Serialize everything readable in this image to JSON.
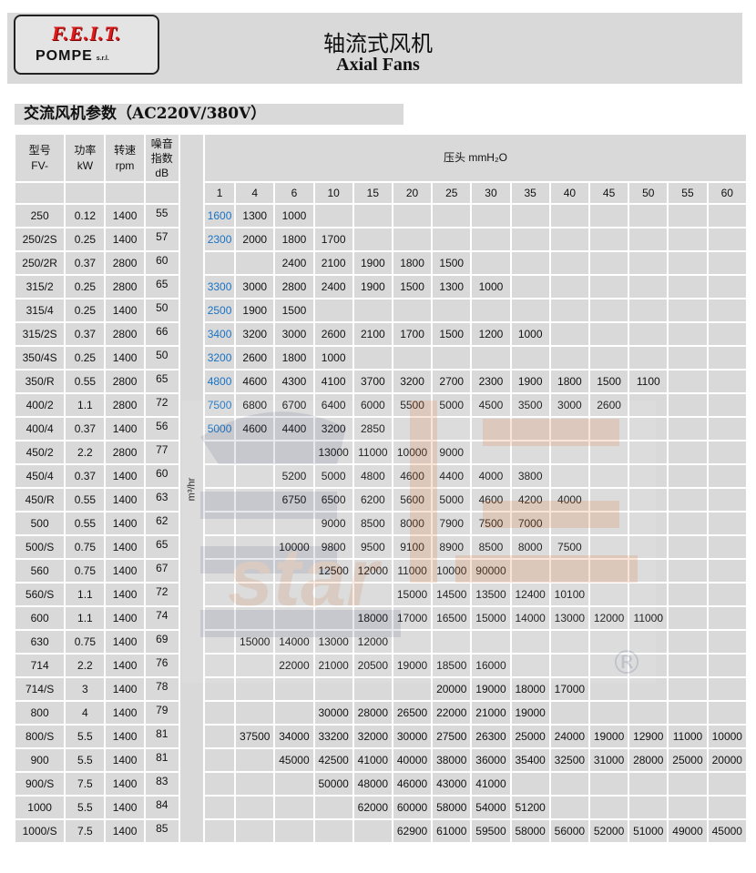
{
  "header": {
    "logo_text": "F.E.I.T.",
    "logo_sub": "POMPE",
    "logo_srl": "s.r.l.",
    "title_cn": "轴流式风机",
    "title_en": "Axial Fans"
  },
  "section_title": "交流风机参数（AC220V/380V）",
  "table": {
    "col_headers": {
      "model": "型号\nFV-",
      "power": "功率\nkW",
      "speed": "转速\nrpm",
      "noise": "噪音\n指数\ndB",
      "pressure": "压头 mmH₂O"
    },
    "unit_label": "m³/hr",
    "pressure_values": [
      "1",
      "4",
      "6",
      "10",
      "15",
      "20",
      "25",
      "30",
      "35",
      "40",
      "45",
      "50",
      "55",
      "60"
    ],
    "first_col_color": "#1a72c4",
    "rows": [
      {
        "model": "250",
        "kw": "0.12",
        "rpm": "1400",
        "db": "55",
        "flow": [
          "1600",
          "1300",
          "1000",
          "",
          "",
          "",
          "",
          "",
          "",
          "",
          "",
          "",
          "",
          ""
        ]
      },
      {
        "model": "250/2S",
        "kw": "0.25",
        "rpm": "1400",
        "db": "57",
        "flow": [
          "2300",
          "2000",
          "1800",
          "1700",
          "",
          "",
          "",
          "",
          "",
          "",
          "",
          "",
          "",
          ""
        ]
      },
      {
        "model": "250/2R",
        "kw": "0.37",
        "rpm": "2800",
        "db": "60",
        "flow": [
          "",
          "",
          "2400",
          "2100",
          "1900",
          "1800",
          "1500",
          "",
          "",
          "",
          "",
          "",
          "",
          ""
        ]
      },
      {
        "model": "315/2",
        "kw": "0.25",
        "rpm": "2800",
        "db": "65",
        "flow": [
          "3300",
          "3000",
          "2800",
          "2400",
          "1900",
          "1500",
          "1300",
          "1000",
          "",
          "",
          "",
          "",
          "",
          ""
        ]
      },
      {
        "model": "315/4",
        "kw": "0.25",
        "rpm": "1400",
        "db": "50",
        "flow": [
          "2500",
          "1900",
          "1500",
          "",
          "",
          "",
          "",
          "",
          "",
          "",
          "",
          "",
          "",
          ""
        ]
      },
      {
        "model": "315/2S",
        "kw": "0.37",
        "rpm": "2800",
        "db": "66",
        "flow": [
          "3400",
          "3200",
          "3000",
          "2600",
          "2100",
          "1700",
          "1500",
          "1200",
          "1000",
          "",
          "",
          "",
          "",
          ""
        ]
      },
      {
        "model": "350/4S",
        "kw": "0.25",
        "rpm": "1400",
        "db": "50",
        "flow": [
          "3200",
          "2600",
          "1800",
          "1000",
          "",
          "",
          "",
          "",
          "",
          "",
          "",
          "",
          "",
          ""
        ]
      },
      {
        "model": "350/R",
        "kw": "0.55",
        "rpm": "2800",
        "db": "65",
        "flow": [
          "4800",
          "4600",
          "4300",
          "4100",
          "3700",
          "3200",
          "2700",
          "2300",
          "1900",
          "1800",
          "1500",
          "1100",
          "",
          ""
        ]
      },
      {
        "model": "400/2",
        "kw": "1.1",
        "rpm": "2800",
        "db": "72",
        "flow": [
          "7500",
          "6800",
          "6700",
          "6400",
          "6000",
          "5500",
          "5000",
          "4500",
          "3500",
          "3000",
          "2600",
          "",
          "",
          ""
        ]
      },
      {
        "model": "400/4",
        "kw": "0.37",
        "rpm": "1400",
        "db": "56",
        "flow": [
          "5000",
          "4600",
          "4400",
          "3200",
          "2850",
          "",
          "",
          "",
          "",
          "",
          "",
          "",
          "",
          ""
        ]
      },
      {
        "model": "450/2",
        "kw": "2.2",
        "rpm": "2800",
        "db": "77",
        "flow": [
          "",
          "",
          "",
          "13000",
          "11000",
          "10000",
          "9000",
          "",
          "",
          "",
          "",
          "",
          "",
          ""
        ]
      },
      {
        "model": "450/4",
        "kw": "0.37",
        "rpm": "1400",
        "db": "60",
        "flow": [
          "",
          "",
          "5200",
          "5000",
          "4800",
          "4600",
          "4400",
          "4000",
          "3800",
          "",
          "",
          "",
          "",
          ""
        ]
      },
      {
        "model": "450/R",
        "kw": "0.55",
        "rpm": "1400",
        "db": "63",
        "flow": [
          "",
          "",
          "6750",
          "6500",
          "6200",
          "5600",
          "5000",
          "4600",
          "4200",
          "4000",
          "",
          "",
          "",
          ""
        ]
      },
      {
        "model": "500",
        "kw": "0.55",
        "rpm": "1400",
        "db": "62",
        "flow": [
          "",
          "",
          "",
          "9000",
          "8500",
          "8000",
          "7900",
          "7500",
          "7000",
          "",
          "",
          "",
          "",
          ""
        ]
      },
      {
        "model": "500/S",
        "kw": "0.75",
        "rpm": "1400",
        "db": "65",
        "flow": [
          "",
          "",
          "10000",
          "9800",
          "9500",
          "9100",
          "8900",
          "8500",
          "8000",
          "7500",
          "",
          "",
          "",
          ""
        ]
      },
      {
        "model": "560",
        "kw": "0.75",
        "rpm": "1400",
        "db": "67",
        "flow": [
          "",
          "",
          "",
          "12500",
          "12000",
          "11000",
          "10000",
          "90000",
          "",
          "",
          "",
          "",
          "",
          ""
        ]
      },
      {
        "model": "560/S",
        "kw": "1.1",
        "rpm": "1400",
        "db": "72",
        "flow": [
          "",
          "",
          "",
          "",
          "",
          "15000",
          "14500",
          "13500",
          "12400",
          "10100",
          "",
          "",
          "",
          ""
        ]
      },
      {
        "model": "600",
        "kw": "1.1",
        "rpm": "1400",
        "db": "74",
        "flow": [
          "",
          "",
          "",
          "",
          "18000",
          "17000",
          "16500",
          "15000",
          "14000",
          "13000",
          "12000",
          "11000",
          "",
          ""
        ]
      },
      {
        "model": "630",
        "kw": "0.75",
        "rpm": "1400",
        "db": "69",
        "flow": [
          "",
          "15000",
          "14000",
          "13000",
          "12000",
          "",
          "",
          "",
          "",
          "",
          "",
          "",
          "",
          ""
        ]
      },
      {
        "model": "714",
        "kw": "2.2",
        "rpm": "1400",
        "db": "76",
        "flow": [
          "",
          "",
          "22000",
          "21000",
          "20500",
          "19000",
          "18500",
          "16000",
          "",
          "",
          "",
          "",
          "",
          ""
        ]
      },
      {
        "model": "714/S",
        "kw": "3",
        "rpm": "1400",
        "db": "78",
        "flow": [
          "",
          "",
          "",
          "",
          "",
          "",
          "20000",
          "19000",
          "18000",
          "17000",
          "",
          "",
          "",
          ""
        ]
      },
      {
        "model": "800",
        "kw": "4",
        "rpm": "1400",
        "db": "79",
        "flow": [
          "",
          "",
          "",
          "30000",
          "28000",
          "26500",
          "22000",
          "21000",
          "19000",
          "",
          "",
          "",
          "",
          ""
        ]
      },
      {
        "model": "800/S",
        "kw": "5.5",
        "rpm": "1400",
        "db": "81",
        "flow": [
          "",
          "37500",
          "34000",
          "33200",
          "32000",
          "30000",
          "27500",
          "26300",
          "25000",
          "24000",
          "19000",
          "12900",
          "11000",
          "10000"
        ]
      },
      {
        "model": "900",
        "kw": "5.5",
        "rpm": "1400",
        "db": "81",
        "flow": [
          "",
          "",
          "45000",
          "42500",
          "41000",
          "40000",
          "38000",
          "36000",
          "35400",
          "32500",
          "31000",
          "28000",
          "25000",
          "20000"
        ]
      },
      {
        "model": "900/S",
        "kw": "7.5",
        "rpm": "1400",
        "db": "83",
        "flow": [
          "",
          "",
          "",
          "50000",
          "48000",
          "46000",
          "43000",
          "41000",
          "",
          "",
          "",
          "",
          "",
          ""
        ]
      },
      {
        "model": "1000",
        "kw": "5.5",
        "rpm": "1400",
        "db": "84",
        "flow": [
          "",
          "",
          "",
          "",
          "62000",
          "60000",
          "58000",
          "54000",
          "51200",
          "",
          "",
          "",
          "",
          ""
        ]
      },
      {
        "model": "1000/S",
        "kw": "7.5",
        "rpm": "1400",
        "db": "85",
        "flow": [
          "",
          "",
          "",
          "",
          "",
          "62900",
          "61000",
          "59500",
          "58000",
          "56000",
          "52000",
          "51000",
          "49000",
          "45000"
        ]
      }
    ]
  }
}
